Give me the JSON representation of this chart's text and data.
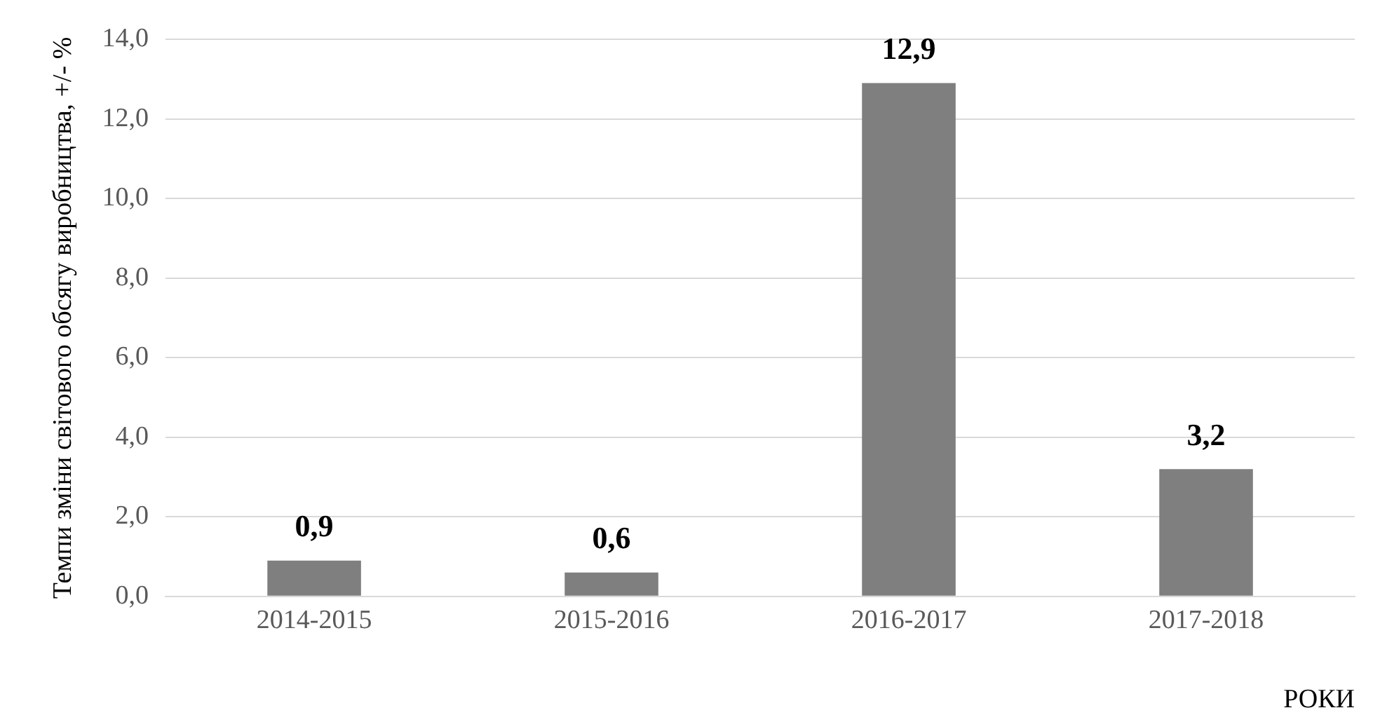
{
  "chart_data": {
    "type": "bar",
    "xlabel": "РОКИ",
    "ylabel": "Темпи зміни світового обсягу виробництва, +/- %",
    "categories": [
      "2014-2015",
      "2015-2016",
      "2016-2017",
      "2017-2018"
    ],
    "values": [
      0.9,
      0.6,
      12.9,
      3.2
    ],
    "color": "#7f7f7f",
    "value_labels": [
      "0,9",
      "0,6",
      "12,9",
      "3,2"
    ],
    "ylim": [
      0,
      14
    ],
    "yticks": [
      {
        "value": 0,
        "label": "0,0"
      },
      {
        "value": 2,
        "label": "2,0"
      },
      {
        "value": 4,
        "label": "4,0"
      },
      {
        "value": 6,
        "label": "6,0"
      },
      {
        "value": 8,
        "label": "8,0"
      },
      {
        "value": 10,
        "label": "10,0"
      },
      {
        "value": 12,
        "label": "12,0"
      },
      {
        "value": 14,
        "label": "14,0"
      }
    ],
    "grid": "y",
    "legend": false
  }
}
